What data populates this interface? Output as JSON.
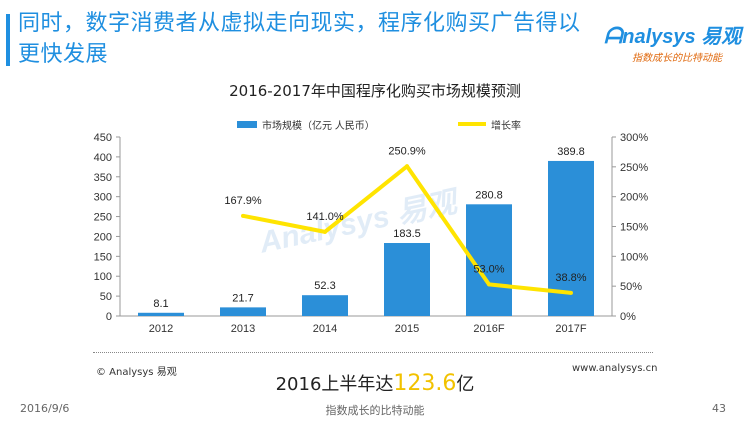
{
  "slide": {
    "title": "同时，数字消费者从虚拟走向现实，程序化购买广告得以更快发展",
    "logo_text": "nalysys 易观",
    "logo_tagline": "指数成长的比特动能"
  },
  "chart_data": {
    "type": "bar",
    "title": "2016-2017年中国程序化购买市场规模预测",
    "categories": [
      "2012",
      "2013",
      "2014",
      "2015",
      "2016F",
      "2017F"
    ],
    "series": [
      {
        "name": "市场规模（亿元 人民币）",
        "type": "bar",
        "axis": "left",
        "values": [
          8.1,
          21.7,
          52.3,
          183.5,
          280.8,
          389.8
        ],
        "labels": [
          "8.1",
          "21.7",
          "52.3",
          "183.5",
          "280.8",
          "389.8"
        ]
      },
      {
        "name": "增长率",
        "type": "line",
        "axis": "right",
        "values": [
          null,
          167.9,
          141.0,
          250.9,
          53.0,
          38.8
        ],
        "labels": [
          "",
          "167.9%",
          "141.0%",
          "250.9%",
          "53.0%",
          "38.8%"
        ]
      }
    ],
    "y_left": {
      "min": 0,
      "max": 450,
      "ticks": [
        "0",
        "50",
        "100",
        "150",
        "200",
        "250",
        "300",
        "350",
        "400",
        "450"
      ]
    },
    "y_right": {
      "min": 0,
      "max": 300,
      "ticks": [
        "0%",
        "50%",
        "100%",
        "150%",
        "200%",
        "250%",
        "300%"
      ]
    },
    "legend_position": "top",
    "grid": false,
    "colors": {
      "bar": "#2b8fd8",
      "line": "#ffe400"
    },
    "watermark": "Analysys 易观"
  },
  "footer": {
    "copyright": "© Analysys 易观",
    "site": "www.analysys.cn",
    "summary_prefix": "2016上半年达",
    "summary_value": "123.6",
    "summary_suffix": "亿",
    "date": "2016/9/6",
    "slogan": "指数成长的比特动能",
    "page": "43"
  }
}
